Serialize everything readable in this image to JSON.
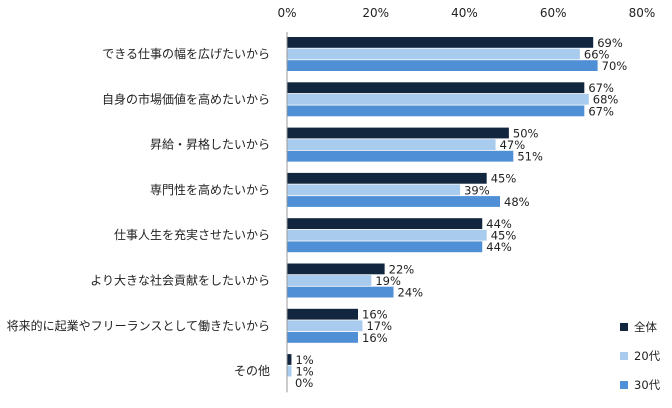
{
  "chart_data": {
    "type": "bar",
    "orientation": "horizontal",
    "title": "",
    "xlabel": "",
    "ylabel": "",
    "xlim": [
      0,
      80
    ],
    "ticks": [
      0,
      20,
      40,
      60,
      80
    ],
    "tick_labels": [
      "0%",
      "20%",
      "40%",
      "60%",
      "80%"
    ],
    "grid": false,
    "legend_position": "bottom-right",
    "categories": [
      "できる仕事の幅を広げたいから",
      "自身の市場価値を高めたいから",
      "昇給・昇格したいから",
      "専門性を高めたいから",
      "仕事人生を充実させたいから",
      "より大きな社会貢献をしたいから",
      "将来的に起業やフリーランスとして働きたいから",
      "その他"
    ],
    "series": [
      {
        "name": "全体",
        "color": "#13263f",
        "values": [
          69,
          67,
          50,
          45,
          44,
          22,
          16,
          1
        ],
        "labels": [
          "69%",
          "67%",
          "50%",
          "45%",
          "44%",
          "22%",
          "16%",
          "1%"
        ]
      },
      {
        "name": "20代",
        "color": "#a9cbed",
        "values": [
          66,
          68,
          47,
          39,
          45,
          19,
          17,
          1
        ],
        "labels": [
          "66%",
          "68%",
          "47%",
          "39%",
          "45%",
          "19%",
          "17%",
          "1%"
        ]
      },
      {
        "name": "30代",
        "color": "#4f8fd6",
        "values": [
          70,
          67,
          51,
          48,
          44,
          24,
          16,
          0
        ],
        "labels": [
          "70%",
          "67%",
          "51%",
          "48%",
          "44%",
          "24%",
          "16%",
          "0%"
        ]
      }
    ]
  }
}
